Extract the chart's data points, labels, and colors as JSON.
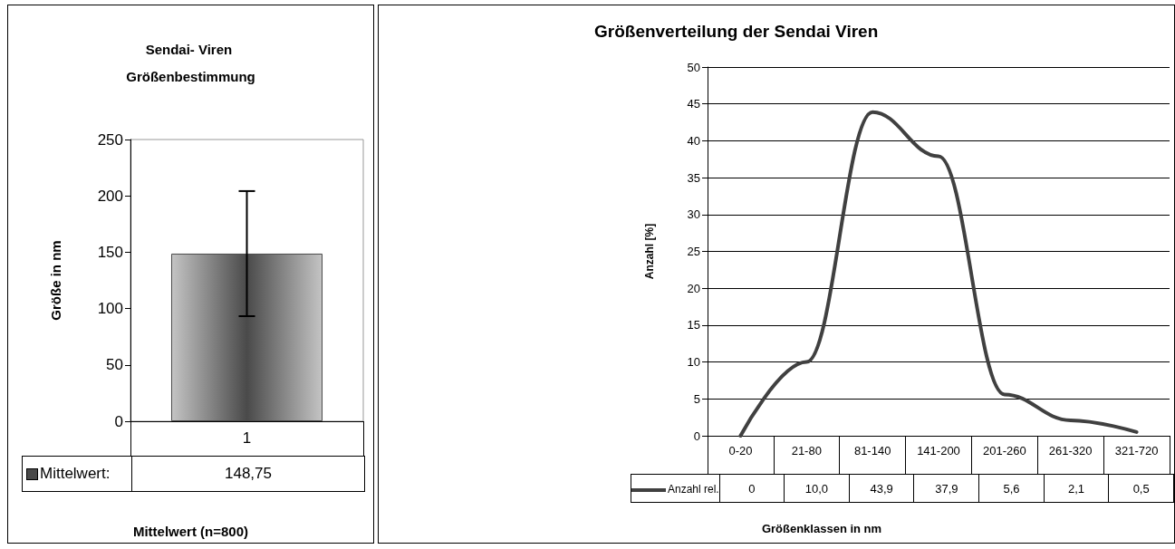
{
  "chart_data": [
    {
      "type": "bar",
      "title": "Sendai- Viren Größenbestimmung",
      "xlabel": "Mittelwert (n=800)",
      "ylabel": "Größe in nm",
      "categories": [
        "1"
      ],
      "series": [
        {
          "name": "Mittelwert:",
          "color": "#4a4a4a",
          "values": [
            148.75
          ],
          "errors": [
            55.5
          ],
          "value_labels": [
            "148,75"
          ]
        }
      ],
      "ylim": [
        0,
        250
      ],
      "yticks": [
        0,
        50,
        100,
        150,
        200,
        250
      ],
      "grid": false,
      "legend": "bottom"
    },
    {
      "type": "line",
      "title": "Größenverteilung der Sendai Viren",
      "xlabel": "Größenklassen in nm",
      "ylabel": "Anzahl [%]",
      "categories": [
        "0-20",
        "21-80",
        "81-140",
        "141-200",
        "201-260",
        "261-320",
        "321-720"
      ],
      "series": [
        {
          "name": "Anzahl rel.",
          "color": "#404040",
          "values": [
            0,
            10.0,
            43.9,
            37.9,
            5.6,
            2.1,
            0.5
          ],
          "value_labels": [
            "0",
            "10,0",
            "43,9",
            "37,9",
            "5,6",
            "2,1",
            "0,5"
          ]
        }
      ],
      "ylim": [
        0,
        50
      ],
      "yticks": [
        0,
        5,
        10,
        15,
        20,
        25,
        30,
        35,
        40,
        45,
        50
      ],
      "grid": "y",
      "legend": "bottom",
      "marker": "none"
    }
  ]
}
